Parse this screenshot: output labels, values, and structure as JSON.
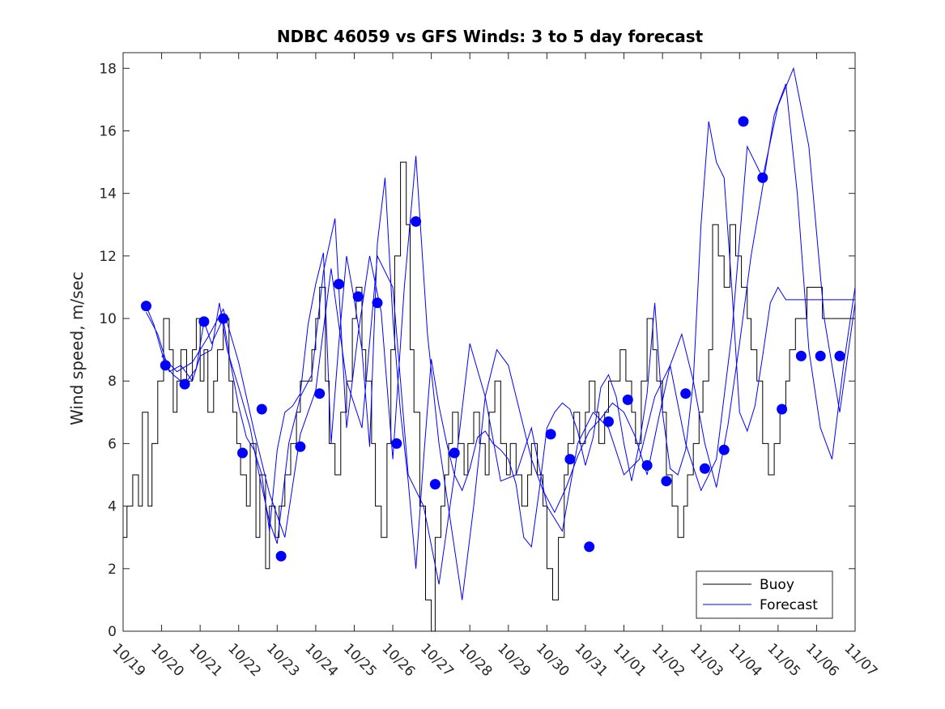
{
  "chart_data": {
    "type": "line",
    "title": "NDBC 46059 vs GFS Winds: 3 to 5 day forecast",
    "xlabel": "",
    "ylabel": "Wind speed, m/sec",
    "ylim": [
      0,
      18.5
    ],
    "xlim": [
      0,
      19
    ],
    "yticks": [
      0,
      2,
      4,
      6,
      8,
      10,
      12,
      14,
      16,
      18
    ],
    "xtick_labels": [
      "10/19",
      "10/20",
      "10/21",
      "10/22",
      "10/23",
      "10/24",
      "10/25",
      "10/26",
      "10/27",
      "10/28",
      "10/29",
      "10/30",
      "10/31",
      "11/01",
      "11/02",
      "11/03",
      "11/04",
      "11/05",
      "11/06",
      "11/07"
    ],
    "legend": {
      "position": "bottom-right",
      "entries": [
        "Buoy",
        "Forecast"
      ]
    },
    "colors": {
      "buoy": "#000000",
      "forecast": "#0000ff",
      "axes": "#262626"
    },
    "series": [
      {
        "name": "Buoy",
        "x": [
          0.0,
          0.1,
          0.25,
          0.4,
          0.5,
          0.65,
          0.75,
          0.9,
          1.05,
          1.2,
          1.3,
          1.4,
          1.5,
          1.65,
          1.8,
          1.9,
          2.0,
          2.1,
          2.2,
          2.35,
          2.45,
          2.6,
          2.75,
          2.85,
          2.95,
          3.05,
          3.2,
          3.3,
          3.45,
          3.55,
          3.7,
          3.8,
          3.95,
          4.05,
          4.2,
          4.35,
          4.5,
          4.6,
          4.75,
          4.9,
          5.0,
          5.1,
          5.25,
          5.35,
          5.5,
          5.65,
          5.8,
          5.95,
          6.05,
          6.2,
          6.3,
          6.45,
          6.55,
          6.7,
          6.85,
          6.95,
          7.05,
          7.2,
          7.35,
          7.45,
          7.55,
          7.7,
          7.85,
          8.0,
          8.1,
          8.25,
          8.35,
          8.45,
          8.55,
          8.7,
          8.85,
          8.95,
          9.1,
          9.25,
          9.4,
          9.5,
          9.65,
          9.8,
          9.95,
          10.05,
          10.2,
          10.35,
          10.5,
          10.6,
          10.75,
          10.9,
          11.0,
          11.15,
          11.3,
          11.45,
          11.55,
          11.7,
          11.85,
          12.0,
          12.1,
          12.25,
          12.35,
          12.5,
          12.6,
          12.75,
          12.9,
          13.05,
          13.2,
          13.3,
          13.45,
          13.6,
          13.75,
          13.85,
          14.0,
          14.1,
          14.25,
          14.4,
          14.55,
          14.65,
          14.8,
          14.95,
          15.05,
          15.2,
          15.3,
          15.45,
          15.6,
          15.75,
          15.9,
          16.05,
          16.2,
          16.3,
          16.45,
          16.6,
          16.75,
          16.9,
          17.05,
          17.2,
          17.3,
          17.45,
          17.6,
          17.75,
          17.9,
          18.0,
          18.15,
          18.3,
          18.45,
          18.6,
          18.75,
          18.9,
          19.0
        ],
        "y": [
          3,
          4,
          5,
          4,
          7,
          4,
          6,
          8,
          10,
          9,
          7,
          8,
          9,
          8,
          9,
          10,
          8,
          9,
          7,
          8,
          9,
          10,
          8,
          7,
          6,
          5,
          4,
          6,
          3,
          5,
          2,
          4,
          3,
          4,
          5,
          6,
          7,
          8,
          8,
          9,
          10,
          11,
          8,
          6,
          5,
          7,
          8,
          10,
          11,
          9,
          8,
          6,
          4,
          3,
          6,
          9,
          12,
          15,
          13,
          9,
          7,
          4,
          1,
          0,
          3,
          4,
          5,
          6,
          7,
          6,
          5,
          6,
          7,
          6,
          5,
          7,
          8,
          6,
          5,
          6,
          5,
          4,
          5,
          6,
          5,
          4,
          2,
          1,
          3,
          5,
          6,
          7,
          6,
          7,
          8,
          7,
          6,
          7,
          8,
          8,
          9,
          8,
          7,
          6,
          8,
          10,
          9,
          8,
          7,
          5,
          4,
          3,
          4,
          5,
          6,
          7,
          8,
          9,
          13,
          12,
          11,
          13,
          12,
          11,
          10,
          9,
          8,
          6,
          5,
          6,
          7,
          8,
          9,
          10,
          10,
          11,
          11,
          11,
          10,
          10,
          10,
          10,
          10,
          10,
          10
        ],
        "color": "#000000"
      },
      {
        "name": "Forecast",
        "x": [
          0.6,
          0.8,
          1.1,
          1.3,
          1.6,
          1.9,
          2.1,
          2.3,
          2.6,
          2.8,
          3.0,
          3.2,
          3.4,
          3.6,
          3.8,
          4.0,
          4.2,
          4.4,
          4.6,
          4.8,
          5.0,
          5.2,
          5.4,
          5.6,
          5.8,
          6.0,
          6.2,
          6.4,
          6.6,
          6.8,
          7.0,
          7.2,
          7.4,
          7.6,
          7.8,
          8.0,
          8.2,
          8.4,
          8.6,
          8.8,
          9.0,
          9.2,
          9.4,
          9.6,
          9.8,
          10.0,
          10.2,
          10.4,
          10.6,
          10.8,
          11.0,
          11.2,
          11.4,
          11.6,
          11.8,
          12.0,
          12.2,
          12.4,
          12.6,
          12.8,
          13.0,
          13.2,
          13.4,
          13.6,
          13.8,
          14.0,
          14.2,
          14.4,
          14.6,
          14.8,
          15.0,
          15.2,
          15.4,
          15.6,
          15.8,
          16.0,
          16.2,
          16.4,
          16.6,
          16.8,
          17.0,
          17.2,
          17.4,
          17.6,
          17.8,
          18.0,
          18.2,
          18.4,
          18.6,
          18.8,
          19.0
        ],
        "y": [
          10.4,
          9.8,
          8.5,
          8.2,
          7.9,
          8.4,
          9.9,
          9.2,
          10.0,
          8.5,
          7.2,
          6.2,
          5.8,
          5.0,
          3.2,
          5.8,
          7.0,
          7.2,
          7.6,
          9.8,
          11.1,
          12.1,
          6.0,
          9.2,
          12.0,
          10.6,
          9.0,
          5.9,
          12.4,
          14.5,
          10.0,
          7.0,
          4.8,
          2.0,
          5.5,
          8.7,
          7.2,
          6.0,
          5.0,
          4.5,
          5.2,
          6.2,
          6.4,
          6.0,
          5.8,
          5.5,
          4.7,
          3.0,
          2.7,
          4.5,
          6.5,
          7.0,
          7.3,
          7.1,
          6.4,
          5.3,
          6.2,
          7.8,
          8.2,
          7.5,
          6.0,
          4.8,
          6.0,
          7.6,
          10.5,
          7.0,
          5.2,
          5.0,
          5.8,
          8.0,
          13.0,
          16.3,
          15.0,
          14.5,
          11.0,
          7.0,
          6.4,
          7.2,
          8.8,
          10.5,
          11.0,
          10.6,
          10.6,
          10.6,
          10.6,
          10.6,
          10.6,
          10.6,
          10.6,
          10.6,
          10.6
        ],
        "color": "#0000ff"
      }
    ],
    "extra_forecast_runs": [
      {
        "x": [
          0.6,
          0.9,
          1.2,
          1.5,
          1.8,
          2.0,
          2.3,
          2.5,
          2.7,
          3.0,
          3.3,
          3.5,
          3.8,
          4.0,
          4.3,
          4.6,
          4.9,
          5.2,
          5.5,
          5.8,
          6.1,
          6.4,
          6.7,
          7.0,
          7.3,
          7.6,
          7.9,
          8.2,
          8.5,
          8.8,
          9.1,
          9.4,
          9.7,
          10.0,
          10.3,
          10.6,
          10.9,
          11.2,
          11.5,
          11.8,
          12.1,
          12.4,
          12.7,
          13.0,
          13.3,
          13.6,
          13.9,
          14.2,
          14.5,
          14.8,
          15.1,
          15.4,
          15.7,
          16.0,
          16.3,
          16.6,
          16.9,
          17.2,
          17.5,
          17.8,
          18.1,
          18.4,
          18.7,
          19.0
        ],
        "y": [
          10.2,
          9.5,
          8.3,
          8.5,
          8.0,
          8.8,
          9.0,
          10.5,
          9.0,
          7.8,
          6.5,
          5.2,
          3.5,
          2.8,
          6.0,
          7.5,
          8.2,
          11.5,
          13.2,
          6.5,
          9.5,
          12.0,
          10.2,
          5.5,
          11.0,
          15.2,
          9.5,
          6.0,
          3.5,
          1.0,
          4.0,
          7.5,
          9.0,
          8.5,
          7.0,
          5.5,
          4.5,
          3.8,
          4.6,
          5.6,
          6.4,
          6.8,
          7.3,
          7.0,
          6.2,
          5.0,
          6.8,
          8.5,
          9.5,
          8.0,
          6.0,
          4.6,
          6.6,
          9.2,
          12.0,
          14.2,
          16.5,
          17.5,
          14.0,
          9.0,
          6.5,
          5.5,
          8.5,
          11.0
        ]
      },
      {
        "x": [
          1.0,
          1.4,
          1.8,
          2.2,
          2.6,
          3.0,
          3.4,
          3.8,
          4.2,
          4.6,
          5.0,
          5.4,
          5.8,
          6.2,
          6.6,
          7.0,
          7.4,
          7.8,
          8.2,
          8.6,
          9.0,
          9.4,
          9.8,
          10.2,
          10.6,
          11.0,
          11.4,
          11.8,
          12.2,
          12.6,
          13.0,
          13.4,
          13.8,
          14.2,
          14.6,
          15.0,
          15.4,
          15.8,
          16.2,
          16.6,
          17.0,
          17.4,
          17.8,
          18.2,
          18.6,
          19.0
        ],
        "y": [
          8.8,
          8.3,
          8.6,
          9.4,
          10.3,
          8.6,
          6.4,
          4.4,
          3.0,
          6.3,
          7.7,
          11.6,
          8.0,
          6.5,
          12.0,
          11.0,
          5.0,
          4.0,
          1.5,
          5.0,
          9.2,
          7.5,
          4.8,
          5.0,
          6.5,
          4.0,
          3.2,
          6.0,
          7.0,
          6.5,
          5.0,
          5.5,
          7.5,
          8.5,
          6.0,
          4.5,
          5.5,
          9.5,
          15.5,
          14.5,
          16.8,
          18.0,
          15.5,
          10.0,
          7.0,
          10.5
        ]
      }
    ],
    "buoy_dots": {
      "x": [
        0.6,
        1.1,
        1.6,
        2.1,
        2.6,
        3.1,
        3.6,
        4.1,
        4.6,
        5.1,
        5.6,
        6.1,
        6.6,
        7.1,
        7.6,
        8.1,
        8.6,
        11.1,
        11.6,
        12.1,
        12.6,
        13.1,
        13.6,
        14.1,
        14.6,
        15.1,
        15.6,
        16.1,
        16.6,
        17.1,
        17.6,
        18.1,
        18.6
      ],
      "y": [
        10.4,
        8.5,
        7.9,
        9.9,
        10.0,
        5.7,
        7.1,
        2.4,
        5.9,
        7.6,
        11.1,
        10.7,
        10.5,
        6.0,
        13.1,
        4.7,
        5.7,
        6.3,
        5.5,
        2.7,
        6.7,
        7.4,
        5.3,
        4.8,
        7.6,
        5.2,
        5.8,
        16.3,
        14.5,
        7.1,
        8.8,
        8.8,
        8.8
      ]
    }
  }
}
